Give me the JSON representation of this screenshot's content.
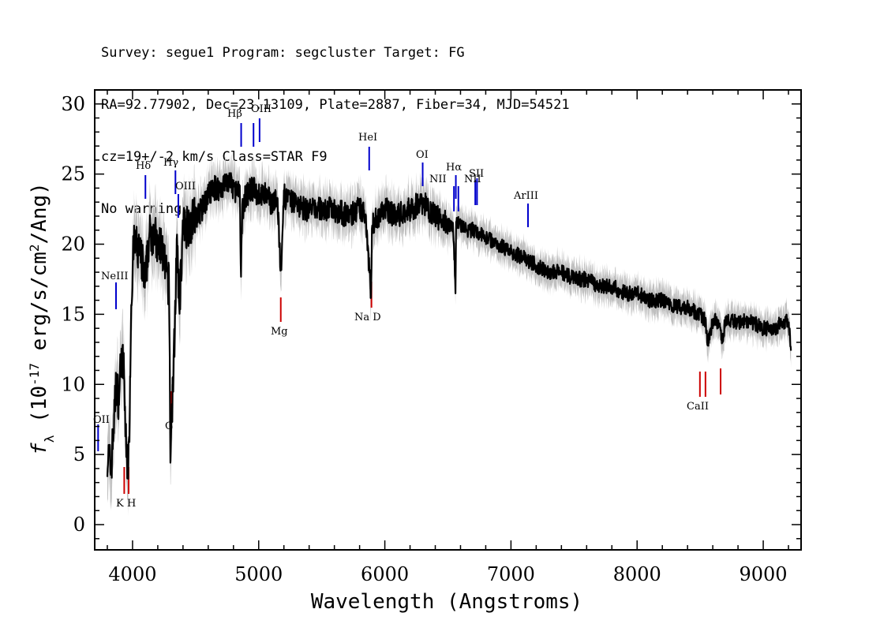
{
  "header": {
    "line1": "Survey: segue1 Program: segcluster Target: FG",
    "line2": "RA=92.77902, Dec=23.13109, Plate=2887, Fiber=34, MJD=54521",
    "line3": "cz=19+/-2 km/s Class=STAR F9",
    "line4": "No warnings."
  },
  "chart_data": {
    "type": "line",
    "xlabel": "Wavelength (Angstroms)",
    "ylabel": "f_λ (10^-17 erg/s/cm^2/Ang)",
    "xlim": [
      3700,
      9300
    ],
    "ylim": [
      -1.8,
      31
    ],
    "xticks": [
      4000,
      5000,
      6000,
      7000,
      8000,
      9000
    ],
    "yticks": [
      0,
      5,
      10,
      15,
      20,
      25,
      30
    ],
    "grid": false,
    "colors": {
      "spectrum": "#000000",
      "error_band": "#bfbfbf",
      "emission": "#0000cc",
      "absorption": "#cc0000"
    },
    "series": [
      {
        "role": "spectrum",
        "x": [
          3800,
          3830,
          3850,
          3870,
          3890,
          3910,
          3930,
          3950,
          3970,
          3990,
          4010,
          4050,
          4080,
          4100,
          4130,
          4170,
          4200,
          4230,
          4260,
          4290,
          4300,
          4330,
          4350,
          4370,
          4400,
          4450,
          4500,
          4550,
          4600,
          4650,
          4700,
          4750,
          4800,
          4850,
          4860,
          4870,
          4900,
          4950,
          5000,
          5050,
          5100,
          5150,
          5170,
          5180,
          5200,
          5250,
          5300,
          5350,
          5400,
          5450,
          5500,
          5600,
          5700,
          5800,
          5850,
          5890,
          5900,
          5950,
          6000,
          6100,
          6200,
          6300,
          6400,
          6500,
          6540,
          6560,
          6565,
          6580,
          6650,
          6700,
          6800,
          6900,
          7000,
          7100,
          7200,
          7300,
          7400,
          7500,
          7600,
          7700,
          7800,
          7900,
          8000,
          8100,
          8200,
          8300,
          8400,
          8500,
          8540,
          8560,
          8600,
          8660,
          8670,
          8700,
          8800,
          8900,
          9000,
          9100,
          9150,
          9200,
          9220
        ],
        "y": [
          5.0,
          4.0,
          7.0,
          10.0,
          9.0,
          12.0,
          11.0,
          5.0,
          4.5,
          16.0,
          20.0,
          19.5,
          18.5,
          17.0,
          20.5,
          21.0,
          19.5,
          20.0,
          18.0,
          17.0,
          5.0,
          12.5,
          20.0,
          15.5,
          21.0,
          21.5,
          22.0,
          22.5,
          23.5,
          24.0,
          24.0,
          24.5,
          24.0,
          23.5,
          17.5,
          22.5,
          23.5,
          24.0,
          23.5,
          23.5,
          23.0,
          23.0,
          19.0,
          17.5,
          23.5,
          23.0,
          23.0,
          22.5,
          22.5,
          22.5,
          22.5,
          22.5,
          22.0,
          22.5,
          22.0,
          16.5,
          21.5,
          22.0,
          22.5,
          22.0,
          22.5,
          23.0,
          22.0,
          21.5,
          21.0,
          17.0,
          21.5,
          21.5,
          21.0,
          21.0,
          20.5,
          20.0,
          19.5,
          19.0,
          18.5,
          18.0,
          18.0,
          17.5,
          17.5,
          17.0,
          17.0,
          16.5,
          16.5,
          16.0,
          16.0,
          15.5,
          15.5,
          15.0,
          14.5,
          13.0,
          14.5,
          14.5,
          13.0,
          14.5,
          14.5,
          14.5,
          14.0,
          14.0,
          14.5,
          14.5,
          12.5
        ]
      }
    ],
    "emission_lines": [
      {
        "label": "OII",
        "x": 3727
      },
      {
        "label": "NeIII",
        "x": 3869
      },
      {
        "label": "Hδ",
        "x": 4102
      },
      {
        "label": "Hγ",
        "x": 4340
      },
      {
        "label": "OIII",
        "x": 4363
      },
      {
        "label": "Hβ",
        "x": 4861
      },
      {
        "label": "OIII",
        "x": 4959
      },
      {
        "label": "OIII",
        "x": 5007
      },
      {
        "label": "HeI",
        "x": 5876
      },
      {
        "label": "OI",
        "x": 6300
      },
      {
        "label": "NII",
        "x": 6548
      },
      {
        "label": "Hα",
        "x": 6563
      },
      {
        "label": "NII",
        "x": 6583
      },
      {
        "label": "SII",
        "x": 6717
      },
      {
        "label": "SII",
        "x": 6731
      },
      {
        "label": "ArIII",
        "x": 7135
      }
    ],
    "absorption_lines": [
      {
        "label": "K",
        "x": 3934
      },
      {
        "label": "H",
        "x": 3969
      },
      {
        "label": "G",
        "x": 4304
      },
      {
        "label": "Mg",
        "x": 5175
      },
      {
        "label": "Na D",
        "x": 5894
      },
      {
        "label": "CaII",
        "x": 8498
      },
      {
        "label": "CaII",
        "x": 8542
      },
      {
        "label": "CaII",
        "x": 8662
      }
    ]
  }
}
